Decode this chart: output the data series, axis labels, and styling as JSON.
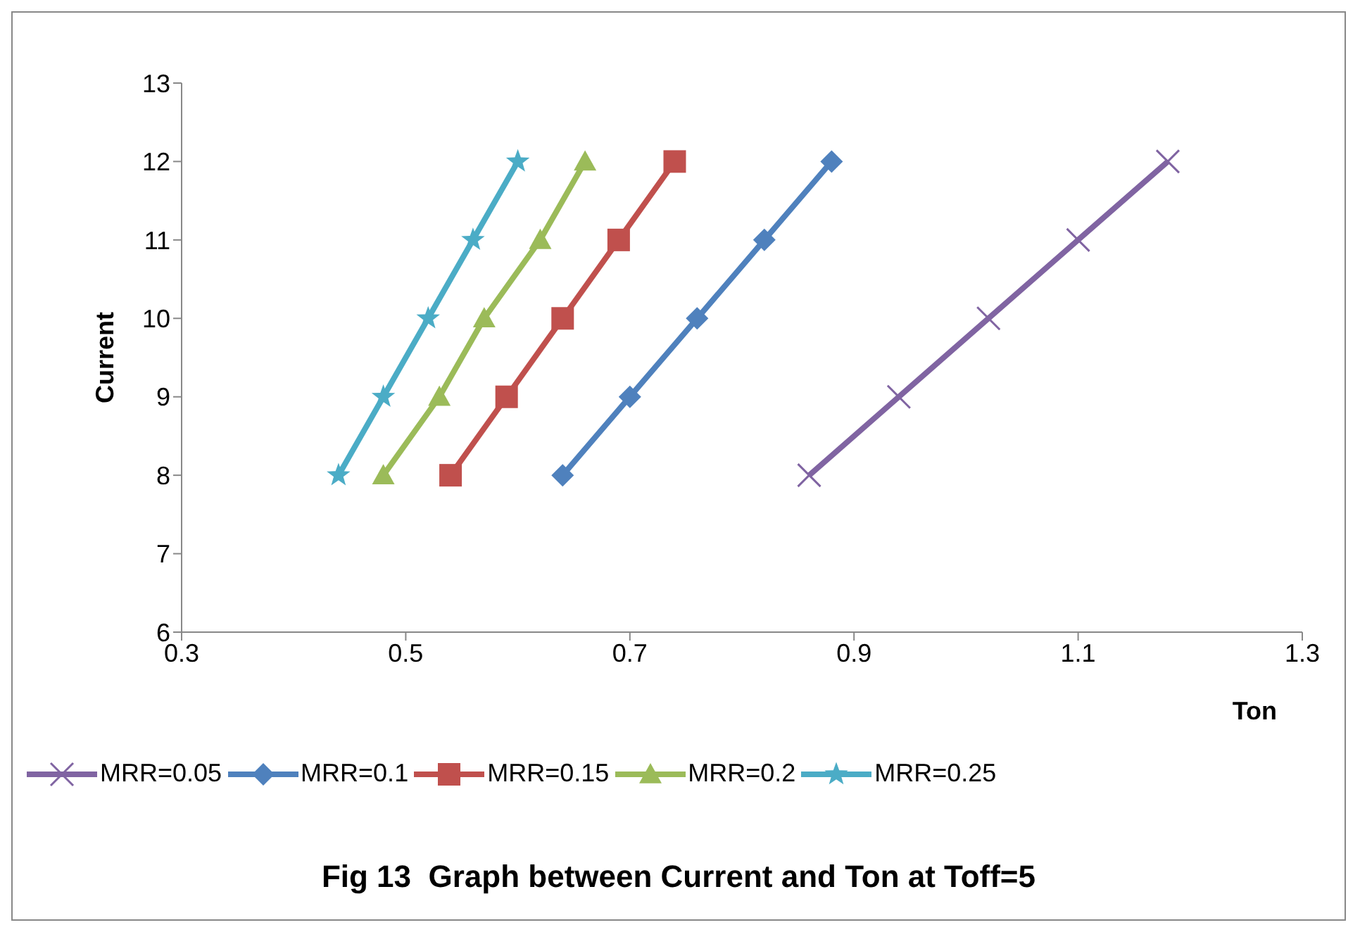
{
  "chart_data": {
    "type": "line",
    "title": "Fig 13  Graph between Current and Ton at Toff=5",
    "xlabel": "Ton",
    "ylabel": "Current",
    "xlim": [
      0.3,
      1.3
    ],
    "xticks": [
      0.3,
      0.5,
      0.7,
      0.9,
      1.1,
      1.3
    ],
    "ylim": [
      6,
      13
    ],
    "yticks": [
      6,
      7,
      8,
      9,
      10,
      11,
      12,
      13
    ],
    "grid": false,
    "legend": "bottom",
    "series": [
      {
        "name": "MRR=0.05",
        "color": "#8064a2",
        "marker": "cross",
        "x": [
          0.86,
          0.94,
          1.02,
          1.1,
          1.18
        ],
        "values": [
          8,
          9,
          10,
          11,
          12
        ]
      },
      {
        "name": "MRR=0.1",
        "color": "#4f81bd",
        "marker": "diamond",
        "x": [
          0.64,
          0.7,
          0.76,
          0.82,
          0.88
        ],
        "values": [
          8,
          9,
          10,
          11,
          12
        ]
      },
      {
        "name": "MRR=0.15",
        "color": "#c0504d",
        "marker": "square",
        "x": [
          0.54,
          0.59,
          0.64,
          0.69,
          0.74
        ],
        "values": [
          8,
          9,
          10,
          11,
          12
        ]
      },
      {
        "name": "MRR=0.2",
        "color": "#9bbb59",
        "marker": "triangle",
        "x": [
          0.48,
          0.53,
          0.57,
          0.62,
          0.66
        ],
        "values": [
          8,
          9,
          10,
          11,
          12
        ]
      },
      {
        "name": "MRR=0.25",
        "color": "#4bacc6",
        "marker": "star",
        "x": [
          0.44,
          0.48,
          0.52,
          0.56,
          0.6
        ],
        "values": [
          8,
          9,
          10,
          11,
          12
        ]
      }
    ]
  }
}
